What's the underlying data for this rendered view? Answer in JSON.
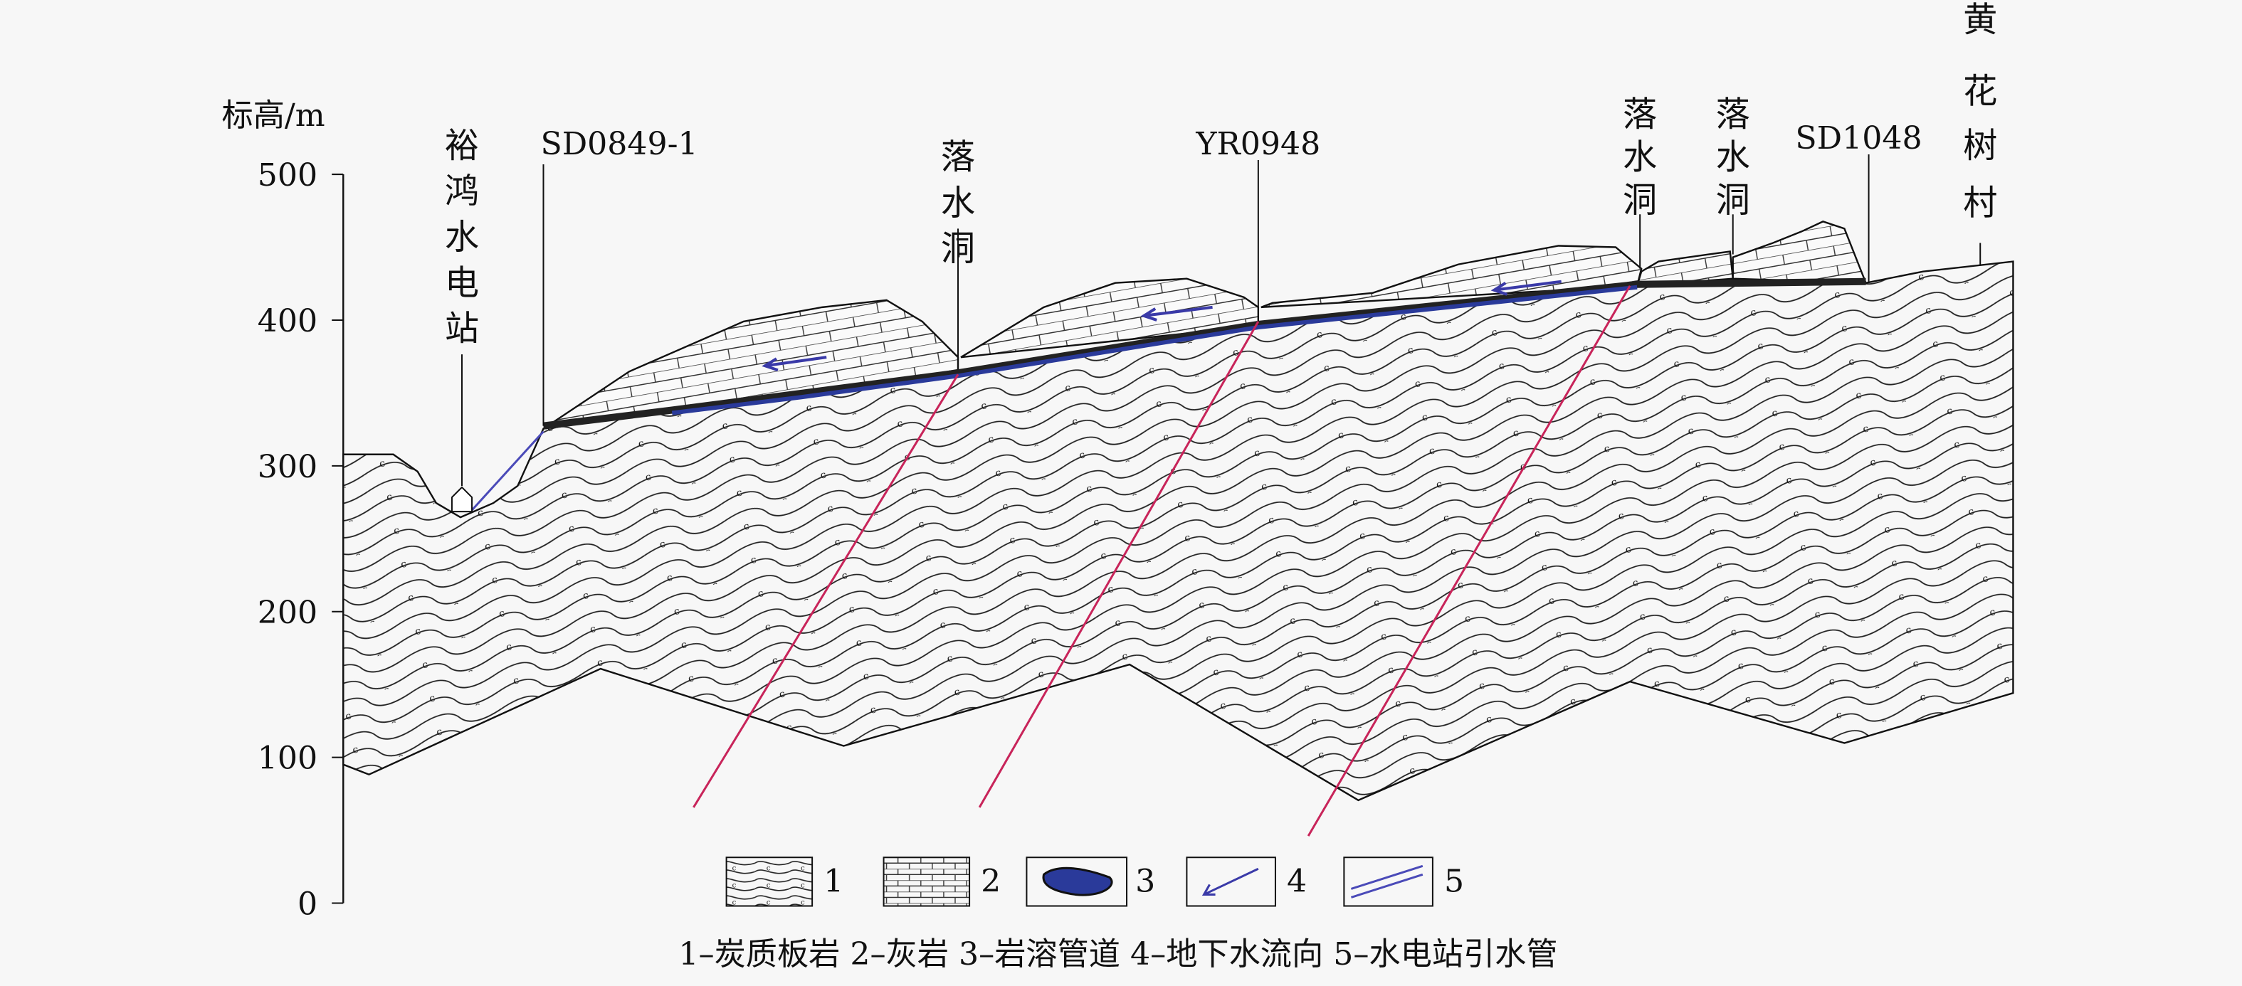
{
  "axis": {
    "label": "标高/m",
    "ticks": [
      "500",
      "400",
      "300",
      "200",
      "100",
      "0"
    ]
  },
  "sites": {
    "station": [
      "裕",
      "鸿",
      "水",
      "电",
      "站"
    ],
    "sd0849": "SD0849-1",
    "sinkhole1": [
      "落",
      "水",
      "洞"
    ],
    "yr0948": "YR0948",
    "sinkhole2": [
      "落",
      "水",
      "洞"
    ],
    "sinkhole3": [
      "落",
      "水",
      "洞"
    ],
    "sd1048": "SD1048",
    "village": [
      "黄",
      "花",
      "树",
      "村"
    ]
  },
  "legend": {
    "items": [
      "1",
      "2",
      "3",
      "4",
      "5"
    ]
  },
  "caption": "1–炭质板岩 2–灰岩 3–岩溶管道 4–地下水流向 5–水电站引水管",
  "colors": {
    "conduit": "#2a3a9a",
    "fault": "#c8245a",
    "flow_arrow": "#3a3aa8",
    "pipe": "#4a4ab8"
  }
}
